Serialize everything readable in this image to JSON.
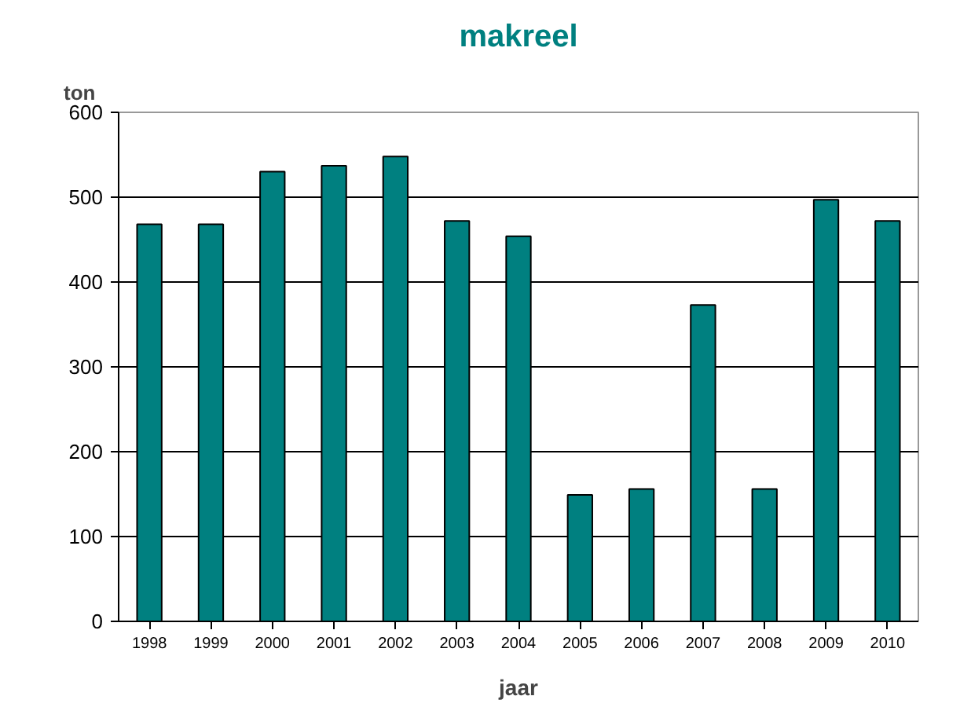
{
  "chart_data": {
    "type": "bar",
    "title": "makreel",
    "xlabel": "jaar",
    "ylabel": "ton",
    "categories": [
      "1998",
      "1999",
      "2000",
      "2001",
      "2002",
      "2003",
      "2004",
      "2005",
      "2006",
      "2007",
      "2008",
      "2009",
      "2010"
    ],
    "values": [
      468,
      468,
      530,
      537,
      548,
      472,
      454,
      149,
      156,
      373,
      156,
      497,
      472
    ],
    "color": "#008080",
    "ylim": [
      0,
      600
    ],
    "yticks": [
      0,
      100,
      200,
      300,
      400,
      500,
      600
    ],
    "grid": "y"
  }
}
